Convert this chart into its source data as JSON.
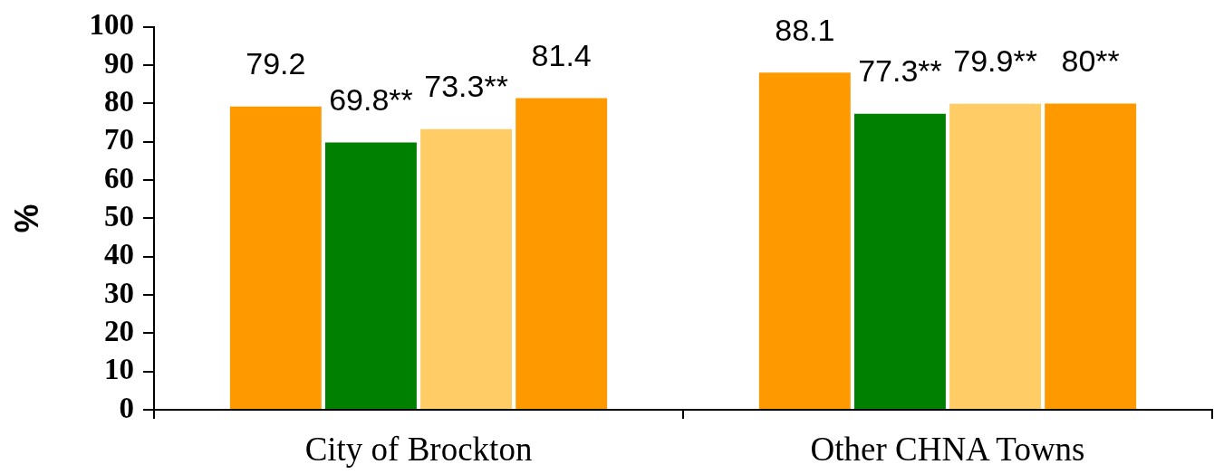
{
  "chart_data": {
    "type": "bar",
    "ylabel": "%",
    "categories": [
      "City of Brockton",
      "Other CHNA Towns"
    ],
    "series": [
      {
        "color": "#ff9900",
        "values": [
          79.2,
          88.1
        ],
        "value_labels": [
          "79.2",
          "88.1"
        ]
      },
      {
        "color": "#008000",
        "values": [
          69.8,
          77.3
        ],
        "value_labels": [
          "69.8**",
          "77.3**"
        ]
      },
      {
        "color": "#ffcc66",
        "values": [
          73.3,
          79.9
        ],
        "value_labels": [
          "73.3**",
          "79.9**"
        ]
      },
      {
        "color": "#ff9900",
        "values": [
          81.4,
          80
        ],
        "value_labels": [
          "81.4",
          "80**"
        ]
      }
    ],
    "ylim": [
      0,
      100
    ],
    "yticks": [
      0,
      10,
      20,
      30,
      40,
      50,
      60,
      70,
      80,
      90,
      100
    ]
  }
}
